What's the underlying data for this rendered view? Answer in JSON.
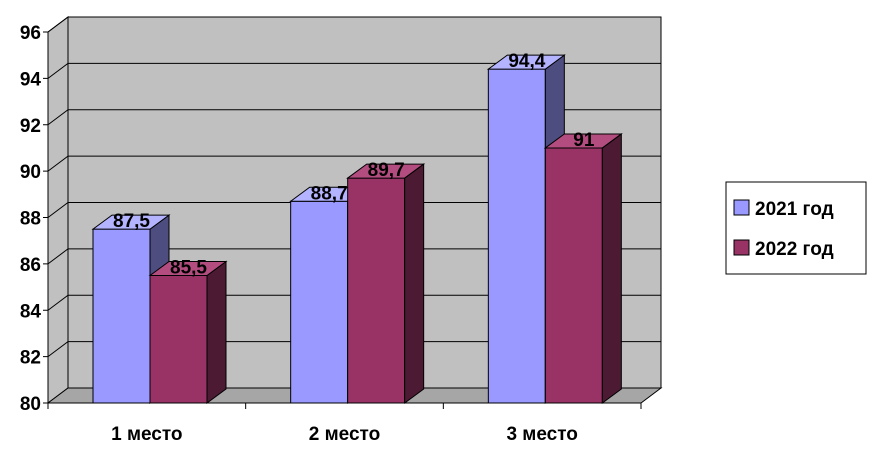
{
  "chart_data": {
    "type": "bar",
    "categories": [
      "1 место",
      "2 место",
      "3 место"
    ],
    "series": [
      {
        "name": "2021 год",
        "values": [
          87.5,
          88.7,
          94.4
        ],
        "labels": [
          "87,5",
          "88,7",
          "94,4"
        ]
      },
      {
        "name": "2022 год",
        "values": [
          85.5,
          89.7,
          91
        ],
        "labels": [
          "85,5",
          "89,7",
          "91"
        ]
      }
    ],
    "yticks": [
      "80",
      "82",
      "84",
      "86",
      "88",
      "90",
      "92",
      "94",
      "96"
    ],
    "ylim": [
      80,
      96
    ],
    "grid": true,
    "legend_position": "right",
    "style": "3d-clustered",
    "colors": {
      "series_front": [
        "#9999ff",
        "#993366"
      ],
      "series_side": [
        "#4d4d80",
        "#4d1a33"
      ],
      "series_top": [
        "#b3b3ff",
        "#b34d80"
      ],
      "plot_back": "#c0c0c0",
      "plot_floor": "#a6a6a6",
      "grid": "#000000"
    }
  }
}
